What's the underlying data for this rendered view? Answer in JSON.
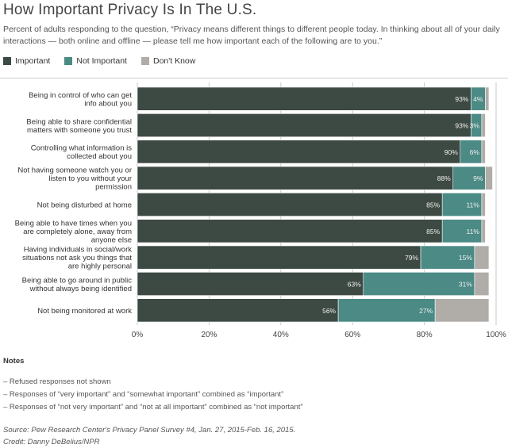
{
  "header": {
    "title": "How Important Privacy Is In The U.S.",
    "subtitle": "Percent of adults responding to the question, “Privacy means different things to different people today. In thinking about all of your daily interactions — both online and offline — please tell me how important each of the following are to you.”"
  },
  "colors": {
    "important": "#3d4a43",
    "not_important": "#4b8a85",
    "dont_know": "#b0aca8",
    "grid": "#c8c8c8",
    "bar_label": "#f0f0f0",
    "outline": "#ffffff"
  },
  "legend": {
    "important": "Important",
    "not_important": "Not Important",
    "dont_know": "Don't Know"
  },
  "chart_data": {
    "type": "bar",
    "orientation": "horizontal",
    "stacked": true,
    "categories": [
      "Being in control of who can get info about you",
      "Being able to share confidential matters with someone you trust",
      "Controlling what information is collected about you",
      "Not having someone watch you or listen to you without your permission",
      "Not being disturbed at home",
      "Being able to have times when you are completely alone, away from anyone else",
      "Having individuals in social/work situations not ask you things that are highly personal",
      "Being able to go around in public without always being identified",
      "Not being monitored at work"
    ],
    "series": [
      {
        "name": "Important",
        "values": [
          93,
          93,
          90,
          88,
          85,
          85,
          79,
          63,
          56
        ],
        "labels": [
          "93%",
          "93%",
          "90%",
          "88%",
          "85%",
          "85%",
          "79%",
          "63%",
          "56%"
        ]
      },
      {
        "name": "Not Important",
        "values": [
          4,
          3,
          6,
          9,
          11,
          11,
          15,
          31,
          27
        ],
        "labels": [
          "4%",
          "3%",
          "6%",
          "9%",
          "11%",
          "11%",
          "15%",
          "31%",
          "27%"
        ]
      },
      {
        "name": "Don't Know",
        "values": [
          1,
          1,
          1,
          2,
          1,
          1,
          4,
          4,
          15
        ],
        "labels": [
          "",
          "",
          "",
          "",
          "",
          "",
          "",
          "",
          ""
        ]
      }
    ],
    "xlim": [
      0,
      100
    ],
    "xticks": [
      "0%",
      "20%",
      "40%",
      "60%",
      "80%",
      "100%"
    ],
    "grid": true,
    "legend_position": "top-left"
  },
  "notes": {
    "title": "Notes",
    "items": [
      "– Refused responses not shown",
      "– Responses of “very important” and “somewhat important” combined as “important”",
      "– Responses of “not very important” and “not at all important” combined as “not important”"
    ]
  },
  "footer": {
    "source": "Source: Pew Research Center's Privacy Panel Survey #4, Jan. 27, 2015-Feb. 16, 2015.",
    "credit": "Credit: Danny DeBelius/NPR"
  }
}
